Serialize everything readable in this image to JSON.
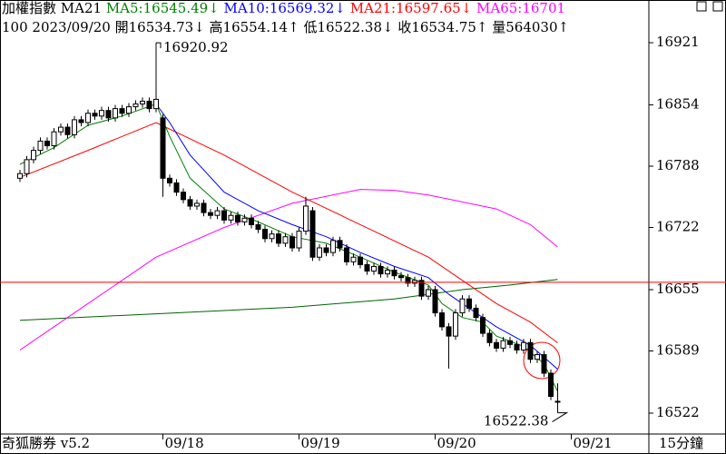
{
  "chart_data": {
    "type": "candlestick",
    "header": [
      [
        {
          "text": "加權指數 MA21",
          "color": "#000000"
        },
        {
          "text": " MA5:16545.49↓",
          "color": "#008000"
        },
        {
          "text": " MA10:16569.32↓",
          "color": "#0000ff"
        },
        {
          "text": " MA21:16597.65↓",
          "color": "#ff0000"
        },
        {
          "text": " MA65:16701",
          "color": "#ff00ff"
        }
      ],
      [
        {
          "text": "100 2023/09/20 開16534.73↓ 高16554.14↑ 低16522.38↓ 收16534.75↑ 量564030↑",
          "color": "#000000"
        }
      ]
    ],
    "footer_left": "奇狐勝券 v5.2",
    "period": "15分鐘",
    "xlim": [
      -2.933,
      92.4
    ],
    "xticks": [
      {
        "value": 21,
        "label": "09/18"
      },
      {
        "value": 41,
        "label": "09/19"
      },
      {
        "value": 61,
        "label": "09/20"
      },
      {
        "value": 81,
        "label": "09/21"
      }
    ],
    "ylim": [
      16499.5,
      16967
    ],
    "yticks": [
      16921,
      16854,
      16788,
      16722,
      16655,
      16589,
      16522
    ],
    "open": [
      16775,
      16780,
      16795,
      16805,
      16815,
      16810,
      16825,
      16830,
      16822,
      16838,
      16835,
      16845,
      16842,
      16848,
      16840,
      16850,
      16845,
      16852,
      16855,
      16858,
      16850,
      16840,
      16775,
      16770,
      16760,
      16752,
      16745,
      16748,
      16738,
      16735,
      16740,
      16730,
      16735,
      16728,
      16732,
      16725,
      16720,
      16710,
      16715,
      16705,
      16712,
      16700,
      16718,
      16740,
      16690,
      16700,
      16695,
      16708,
      16700,
      16685,
      16690,
      16682,
      16675,
      16680,
      16672,
      16676,
      16670,
      16668,
      16662,
      16665,
      16648,
      16655,
      16630,
      16615,
      16605,
      16630,
      16645,
      16635,
      16625,
      16608,
      16598,
      16592,
      16600,
      16596,
      16590,
      16598,
      16580,
      16585,
      16565,
      16534.73
    ],
    "high": [
      16784,
      16799,
      16809,
      16819,
      16819,
      16829,
      16834,
      16834,
      16842,
      16842,
      16849,
      16849,
      16852,
      16852,
      16854,
      16854,
      16856,
      16859,
      16862,
      16862,
      16920.92,
      16844,
      16779,
      16774,
      16764,
      16756,
      16752,
      16752,
      16742,
      16744,
      16744,
      16739,
      16739,
      16736,
      16736,
      16729,
      16724,
      16719,
      16719,
      16716,
      16716,
      16722,
      16755,
      16744,
      16704,
      16704,
      16712,
      16712,
      16704,
      16694,
      16694,
      16686,
      16684,
      16684,
      16680,
      16680,
      16674,
      16672,
      16669,
      16669,
      16659,
      16659,
      16634,
      16619,
      16634,
      16649,
      16649,
      16639,
      16629,
      16612,
      16602,
      16604,
      16604,
      16600,
      16602,
      16602,
      16589,
      16589,
      16569,
      16554.14
    ],
    "low": [
      16771,
      16776,
      16791,
      16801,
      16806,
      16806,
      16821,
      16818,
      16818,
      16831,
      16831,
      16838,
      16838,
      16836,
      16836,
      16841,
      16841,
      16848,
      16851,
      16846,
      16846,
      16755,
      16766,
      16756,
      16748,
      16741,
      16741,
      16734,
      16731,
      16731,
      16726,
      16726,
      16724,
      16724,
      16721,
      16716,
      16706,
      16706,
      16701,
      16701,
      16696,
      16696,
      16714,
      16686,
      16686,
      16691,
      16691,
      16696,
      16681,
      16681,
      16678,
      16671,
      16671,
      16668,
      16668,
      16666,
      16664,
      16658,
      16658,
      16644,
      16644,
      16626,
      16611,
      16570,
      16601,
      16626,
      16631,
      16621,
      16604,
      16594,
      16588,
      16588,
      16592,
      16586,
      16586,
      16576,
      16576,
      16561,
      16536,
      16522.38
    ],
    "close": [
      16780,
      16795,
      16805,
      16815,
      16810,
      16825,
      16830,
      16822,
      16838,
      16835,
      16845,
      16842,
      16848,
      16840,
      16850,
      16845,
      16852,
      16855,
      16858,
      16850,
      16860,
      16775,
      16770,
      16760,
      16752,
      16745,
      16748,
      16738,
      16735,
      16740,
      16730,
      16735,
      16728,
      16732,
      16725,
      16720,
      16710,
      16715,
      16705,
      16712,
      16700,
      16718,
      16745,
      16690,
      16700,
      16695,
      16708,
      16700,
      16685,
      16690,
      16682,
      16675,
      16680,
      16672,
      16676,
      16670,
      16668,
      16662,
      16665,
      16648,
      16655,
      16630,
      16615,
      16605,
      16630,
      16645,
      16635,
      16625,
      16608,
      16598,
      16592,
      16600,
      16596,
      16590,
      16598,
      16580,
      16585,
      16565,
      16540,
      16534.75
    ],
    "lines": [
      {
        "color": "#006400",
        "x": [
          0,
          20,
          40,
          55,
          65,
          72,
          79
        ],
        "values": [
          16622,
          16629,
          16636,
          16645,
          16655,
          16660,
          16666
        ]
      },
      {
        "color": "#ff00ff",
        "x": [
          0,
          10,
          20,
          30,
          40,
          50,
          55,
          60,
          70,
          75,
          79
        ],
        "values": [
          16590,
          16640,
          16690,
          16722,
          16748,
          16763,
          16762,
          16757,
          16742,
          16725,
          16701
        ]
      },
      {
        "color": "#ff0000",
        "x": [
          0,
          10,
          20,
          30,
          40,
          50,
          60,
          65,
          70,
          75,
          79
        ],
        "values": [
          16776,
          16805,
          16835,
          16800,
          16760,
          16725,
          16690,
          16665,
          16640,
          16620,
          16597.65
        ]
      },
      {
        "color": "#0000ff",
        "x": [
          20,
          22,
          25,
          30,
          35,
          40,
          45,
          50,
          55,
          60,
          63,
          66,
          70,
          75,
          79
        ],
        "values": [
          16855,
          16835,
          16800,
          16760,
          16740,
          16725,
          16712,
          16695,
          16680,
          16668,
          16650,
          16635,
          16615,
          16595,
          16569.32
        ]
      },
      {
        "color": "#008000",
        "x": [
          0,
          5,
          10,
          15,
          20,
          22,
          25,
          30,
          35,
          40,
          45,
          50,
          55,
          60,
          62,
          65,
          68,
          70,
          74,
          77,
          79
        ],
        "values": [
          16790,
          16808,
          16832,
          16842,
          16855,
          16820,
          16775,
          16742,
          16728,
          16712,
          16705,
          16690,
          16674,
          16660,
          16640,
          16625,
          16620,
          16605,
          16594,
          16575,
          16545.49
        ]
      }
    ],
    "ref_line": {
      "value": 16663,
      "color": "#ff0000"
    },
    "high_note_index": 20,
    "low_note_index": 79
  }
}
